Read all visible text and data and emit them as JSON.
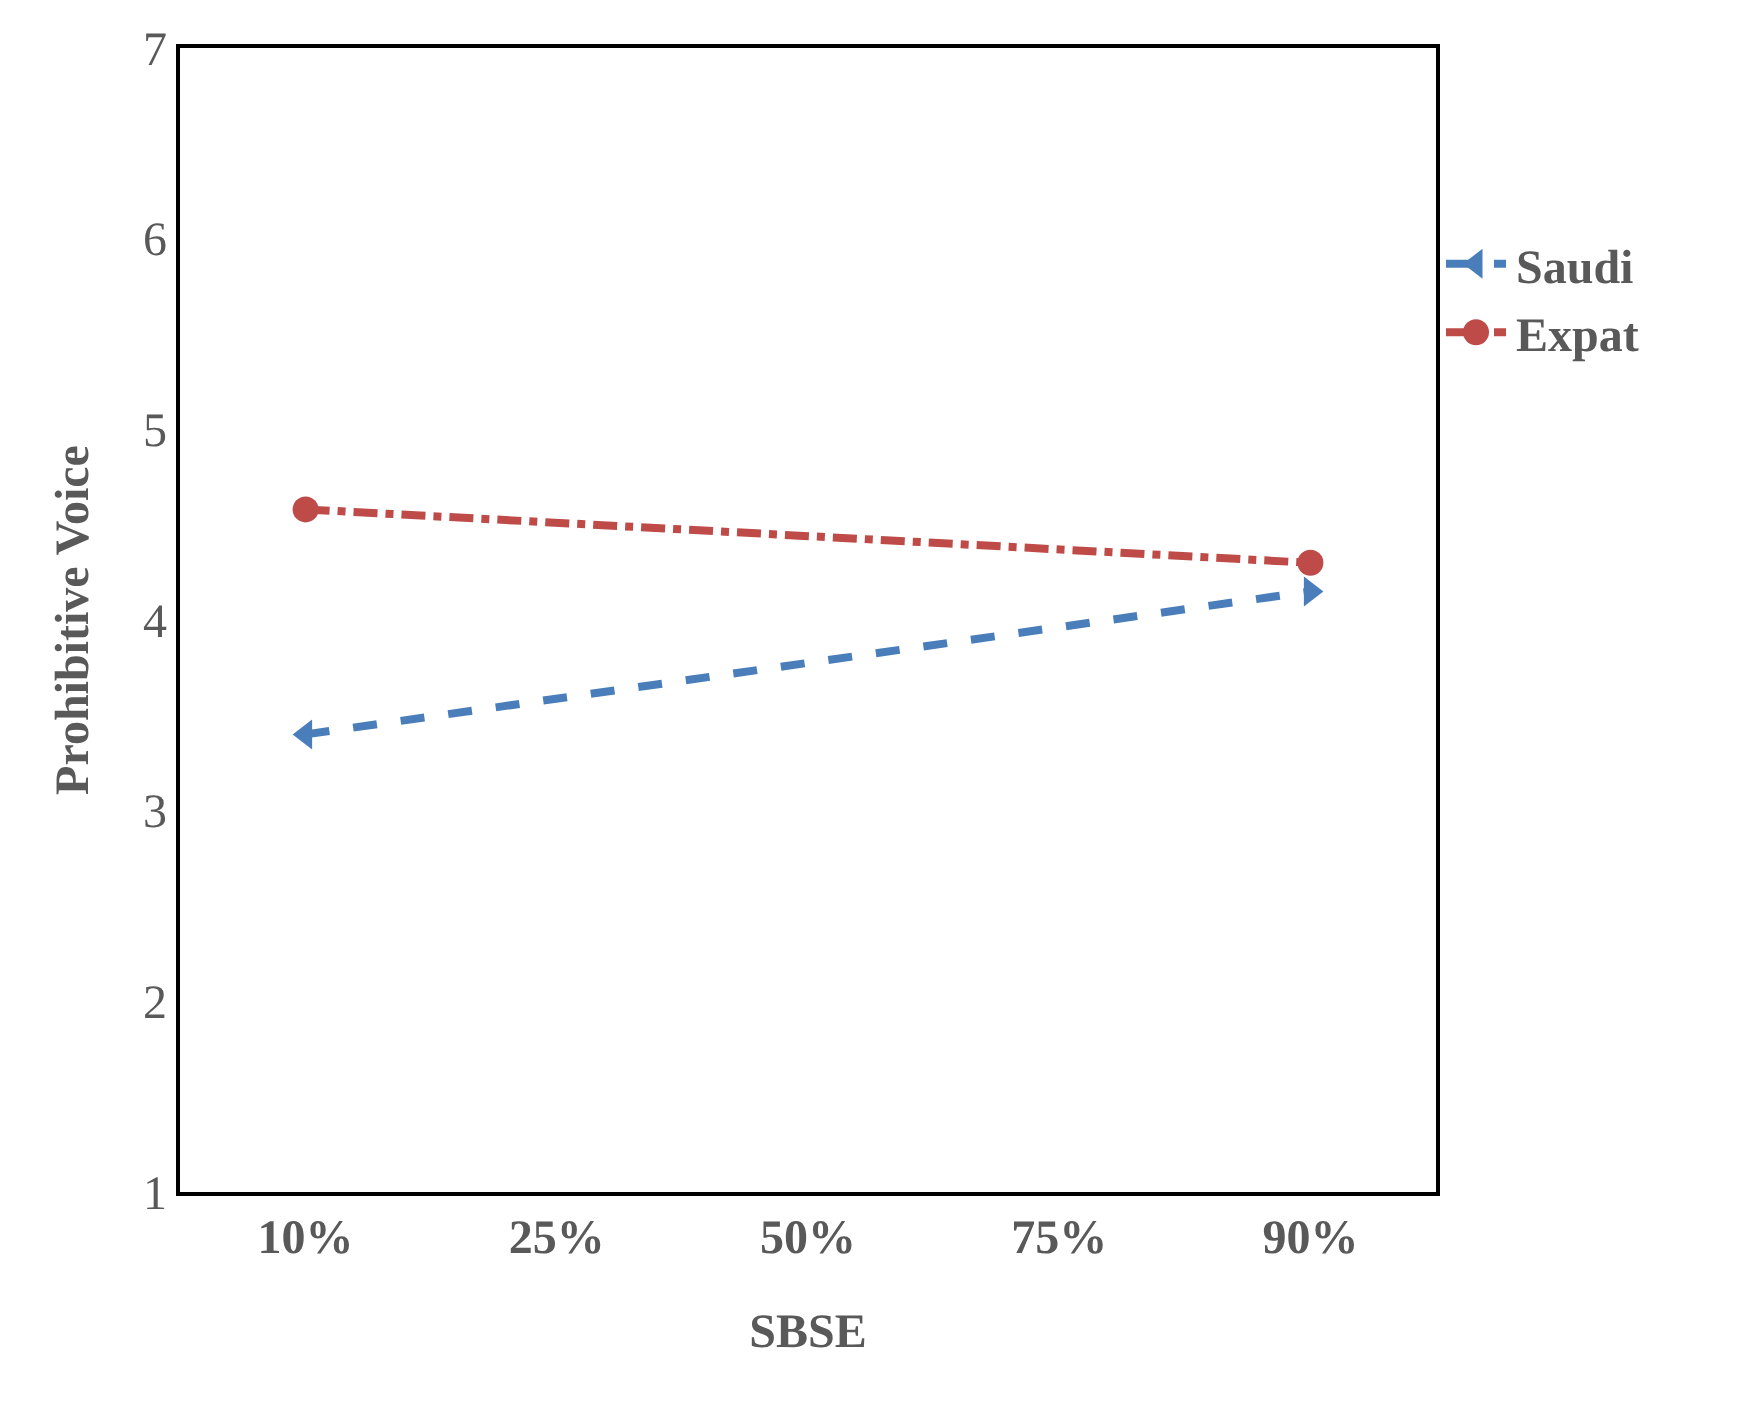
{
  "chart_data": {
    "type": "line",
    "xlabel": "SBSE",
    "ylabel": "Prohibitive Voice",
    "categories": [
      "10%",
      "25%",
      "50%",
      "75%",
      "90%"
    ],
    "series": [
      {
        "name": "Saudi",
        "color": "#4a7ebb",
        "values": [
          3.4,
          null,
          null,
          null,
          4.15
        ],
        "line_style": "dashed",
        "marker": "triangle"
      },
      {
        "name": "Expat",
        "color": "#be4b48",
        "values": [
          4.58,
          null,
          null,
          null,
          4.3
        ],
        "line_style": "dashdot",
        "marker": "circle"
      }
    ],
    "ylim": [
      1,
      7
    ],
    "yticks": [
      1,
      2,
      3,
      4,
      5,
      6,
      7
    ],
    "legend": "right"
  }
}
